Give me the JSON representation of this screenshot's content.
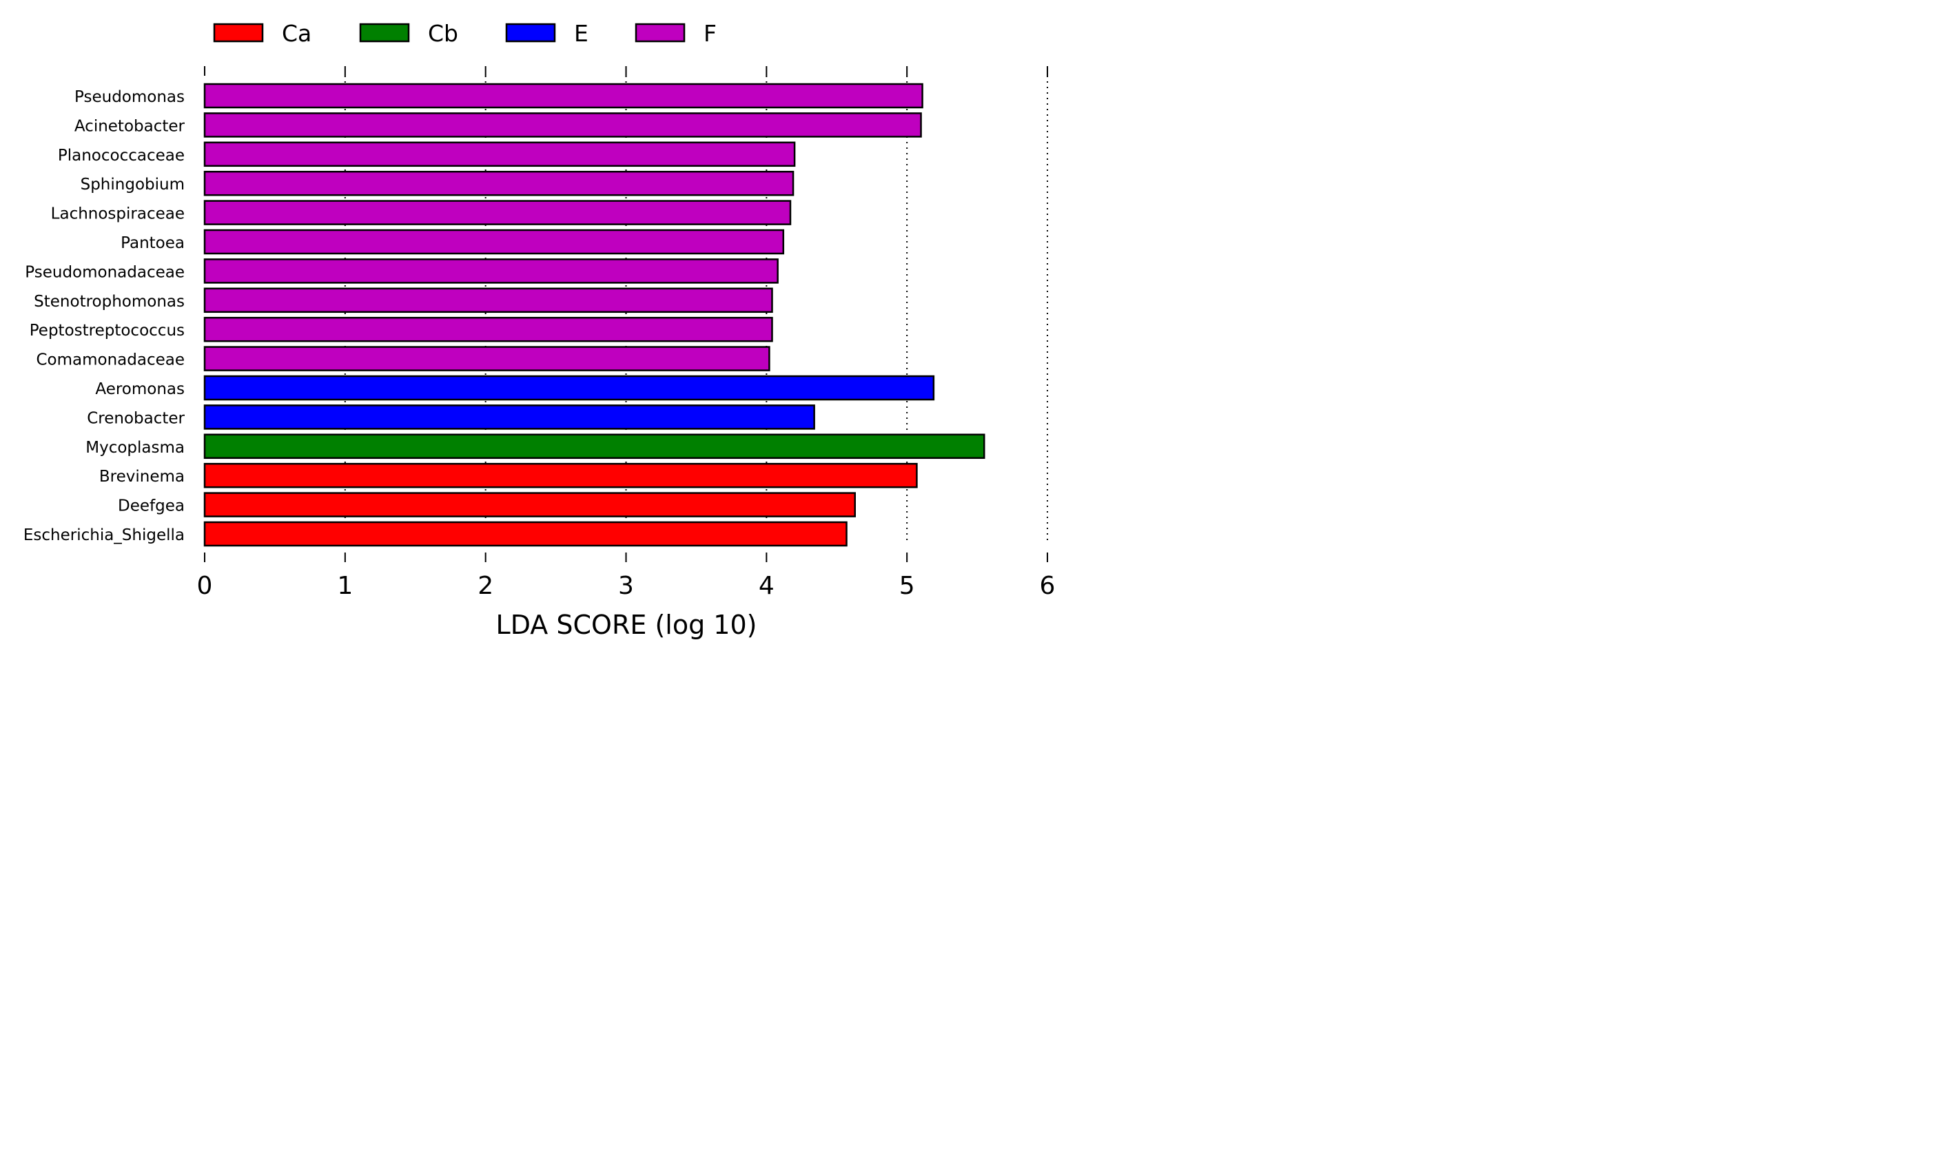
{
  "chart_data": {
    "type": "bar",
    "orientation": "horizontal",
    "title": "",
    "xlabel": "LDA SCORE (log 10)",
    "ylabel": "",
    "xlim": [
      0,
      6
    ],
    "xticks": [
      "0",
      "1",
      "2",
      "3",
      "4",
      "5",
      "6"
    ],
    "grid": "vertical dotted",
    "legend_position": "top",
    "legend": [
      {
        "label": "Ca",
        "color": "#ff0000"
      },
      {
        "label": "Cb",
        "color": "#008000"
      },
      {
        "label": "E",
        "color": "#0000ff"
      },
      {
        "label": "F",
        "color": "#bf00bf"
      }
    ],
    "categories": [
      "Pseudomonas",
      "Acinetobacter",
      "Planococcaceae",
      "Sphingobium",
      "Lachnospiraceae",
      "Pantoea",
      "Pseudomonadaceae",
      "Stenotrophomonas",
      "Peptostreptococcus",
      "Comamonadaceae",
      "Aeromonas",
      "Crenobacter",
      "Mycoplasma",
      "Brevinema",
      "Deefgea",
      "Escherichia_Shigella"
    ],
    "values": [
      5.11,
      5.1,
      4.2,
      4.19,
      4.17,
      4.12,
      4.08,
      4.04,
      4.04,
      4.02,
      5.19,
      4.34,
      5.55,
      5.07,
      4.63,
      4.57
    ],
    "groups": [
      "F",
      "F",
      "F",
      "F",
      "F",
      "F",
      "F",
      "F",
      "F",
      "F",
      "E",
      "E",
      "Cb",
      "Ca",
      "Ca",
      "Ca"
    ]
  }
}
